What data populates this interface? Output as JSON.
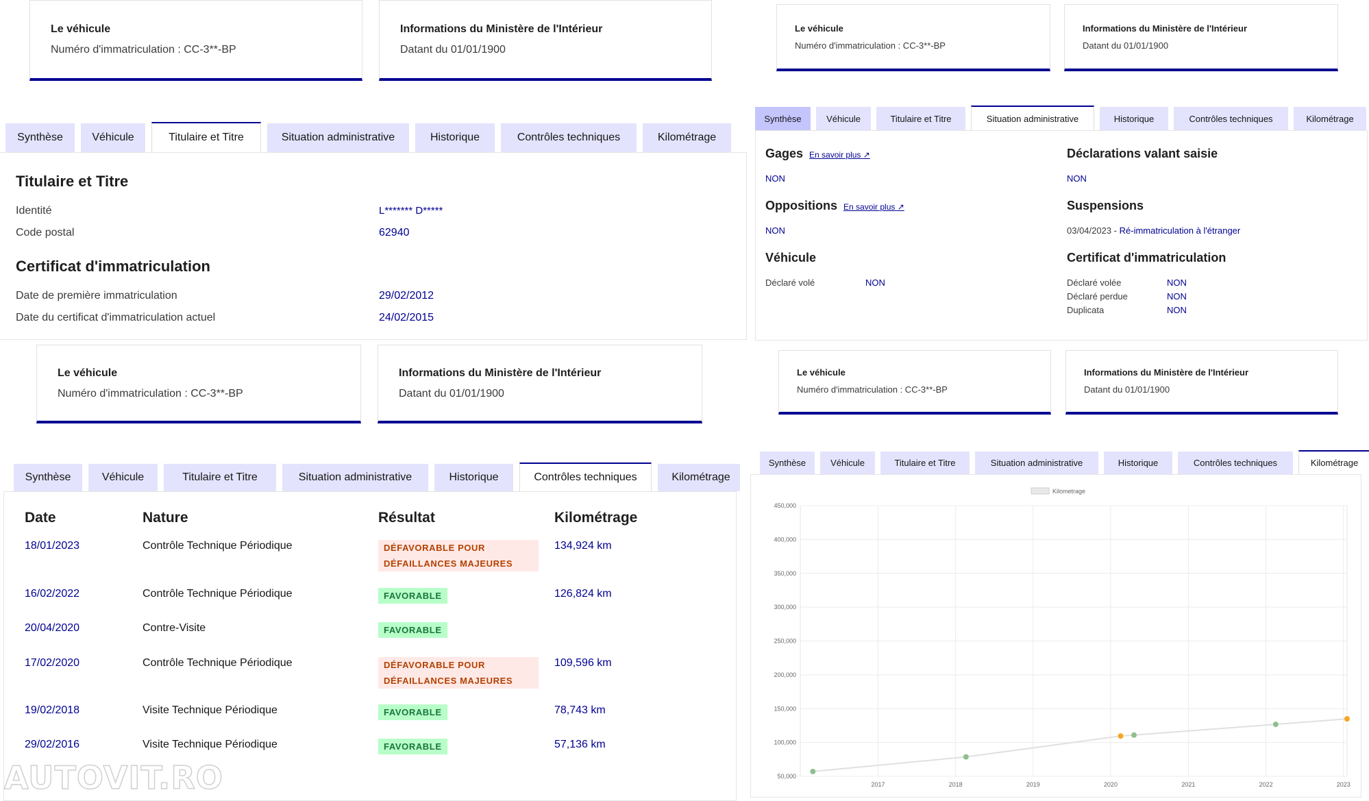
{
  "cards": {
    "vehicle_title": "Le véhicule",
    "vehicle_plate": "Numéro d'immatriculation : CC-3**-BP",
    "ministry_title": "Informations du Ministère de l'Intérieur",
    "ministry_date": "Datant du 01/01/1900"
  },
  "tabs": [
    "Synthèse",
    "Véhicule",
    "Titulaire et Titre",
    "Situation administrative",
    "Historique",
    "Contrôles techniques",
    "Kilométrage"
  ],
  "titulaire": {
    "heading": "Titulaire et Titre",
    "identity_label": "Identité",
    "identity_value": "L******* D*****",
    "postal_label": "Code postal",
    "postal_value": "62940",
    "cert_heading": "Certificat d'immatriculation",
    "first_reg_label": "Date de première immatriculation",
    "first_reg_value": "29/02/2012",
    "cert_date_label": "Date du certificat d'immatriculation actuel",
    "cert_date_value": "24/02/2015"
  },
  "situation": {
    "gages_title": "Gages",
    "gages_link": "En savoir plus",
    "gages_value": "NON",
    "decl_title": "Déclarations valant saisie",
    "decl_value": "NON",
    "opp_title": "Oppositions",
    "opp_link": "En savoir plus",
    "opp_value": "NON",
    "susp_title": "Suspensions",
    "susp_date": "03/04/2023 - ",
    "susp_text": "Ré-immatriculation à l'étranger",
    "veh_title": "Véhicule",
    "vole_label": "Déclaré volé",
    "vole_value": "NON",
    "cert_title": "Certificat d'immatriculation",
    "cert_vole_label": "Déclaré volée",
    "cert_vole_value": "NON",
    "cert_perdue_label": "Déclaré perdue",
    "cert_perdue_value": "NON",
    "cert_dup_label": "Duplicata",
    "cert_dup_value": "NON"
  },
  "controles": {
    "headers": [
      "Date",
      "Nature",
      "Résultat",
      "Kilométrage"
    ],
    "rows": [
      {
        "date": "18/01/2023",
        "nature": "Contrôle Technique Périodique",
        "result": "DÉFAVORABLE POUR DÉFAILLANCES MAJEURES",
        "status": "bad",
        "km": "134,924 km"
      },
      {
        "date": "16/02/2022",
        "nature": "Contrôle Technique Périodique",
        "result": "FAVORABLE",
        "status": "good",
        "km": "126,824 km"
      },
      {
        "date": "20/04/2020",
        "nature": "Contre-Visite",
        "result": "FAVORABLE",
        "status": "good",
        "km": ""
      },
      {
        "date": "17/02/2020",
        "nature": "Contrôle Technique Périodique",
        "result": "DÉFAVORABLE POUR DÉFAILLANCES MAJEURES",
        "status": "bad",
        "km": "109,596 km"
      },
      {
        "date": "19/02/2018",
        "nature": "Visite Technique Périodique",
        "result": "FAVORABLE",
        "status": "good",
        "km": "78,743 km"
      },
      {
        "date": "29/02/2016",
        "nature": "Visite Technique Périodique",
        "result": "FAVORABLE",
        "status": "good",
        "km": "57,136 km"
      }
    ]
  },
  "watermark": "AUTOVIT.RO",
  "chart_data": {
    "type": "line",
    "title": "",
    "legend": [
      "Kilometrage"
    ],
    "legend_placement": "top",
    "grid": true,
    "xlim": [
      "2016-01-01",
      "2023-01-18"
    ],
    "ylim": [
      50000,
      450000
    ],
    "x_ticks": [
      "2017",
      "2018",
      "2019",
      "2020",
      "2021",
      "2022",
      "2023"
    ],
    "y_ticks": [
      "50,000",
      "100,000",
      "150,000",
      "200,000",
      "250,000",
      "300,000",
      "350,000",
      "400,000",
      "450,000"
    ],
    "series": [
      {
        "name": "Kilometrage",
        "points": [
          {
            "x": "2016-02-29",
            "y": 57136,
            "status": "favorable"
          },
          {
            "x": "2018-02-19",
            "y": 78743,
            "status": "favorable"
          },
          {
            "x": "2020-02-17",
            "y": 109596,
            "status": "defavorable"
          },
          {
            "x": "2020-04-20",
            "y": 111000,
            "status": "favorable"
          },
          {
            "x": "2022-02-16",
            "y": 126824,
            "status": "favorable"
          },
          {
            "x": "2023-01-18",
            "y": 134924,
            "status": "defavorable"
          }
        ]
      }
    ],
    "colors": {
      "favorable": "#8fbf8f",
      "defavorable": "#f5a623",
      "line": "#e0e0e0"
    }
  }
}
